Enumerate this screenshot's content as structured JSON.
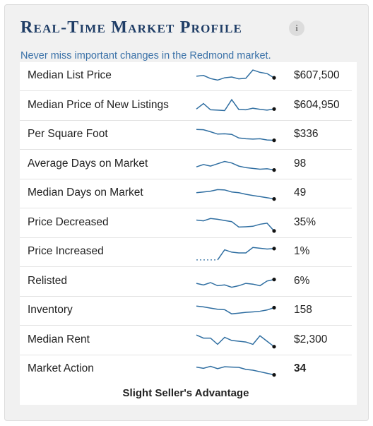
{
  "title": "Real-Time Market Profile",
  "subtitle": "Never miss important changes in the Redmond market.",
  "info_icon": "info-icon",
  "accent_color": "#1f3d66",
  "sparkline_color": "#2f6ea1",
  "rows": [
    {
      "label": "Median List Price",
      "value": "$607,500",
      "trend": [
        0.55,
        0.6,
        0.4,
        0.3,
        0.45,
        0.5,
        0.38,
        0.42,
        0.95,
        0.8,
        0.72,
        0.45
      ]
    },
    {
      "label": "Median Price of New Listings",
      "value": "$604,950",
      "trend": [
        0.35,
        0.7,
        0.3,
        0.28,
        0.25,
        0.95,
        0.32,
        0.3,
        0.4,
        0.33,
        0.28,
        0.35
      ]
    },
    {
      "label": "Per Square Foot",
      "value": "$336",
      "trend": [
        0.9,
        0.88,
        0.75,
        0.6,
        0.62,
        0.58,
        0.35,
        0.3,
        0.28,
        0.3,
        0.22,
        0.2
      ]
    },
    {
      "label": "Average Days on Market",
      "value": "98",
      "trend": [
        0.4,
        0.55,
        0.45,
        0.6,
        0.75,
        0.65,
        0.45,
        0.35,
        0.3,
        0.25,
        0.28,
        0.2
      ]
    },
    {
      "label": "Median Days on Market",
      "value": "49",
      "trend": [
        0.6,
        0.65,
        0.7,
        0.8,
        0.78,
        0.65,
        0.6,
        0.5,
        0.42,
        0.35,
        0.28,
        0.2
      ]
    },
    {
      "label": "Price Decreased",
      "value": "35%",
      "trend": [
        0.75,
        0.7,
        0.85,
        0.8,
        0.72,
        0.65,
        0.3,
        0.32,
        0.35,
        0.48,
        0.55,
        0.05
      ]
    },
    {
      "label": "Price Increased",
      "value": "1%",
      "trend": [
        0.05,
        0.05,
        0.05,
        0.05,
        0.7,
        0.55,
        0.5,
        0.5,
        0.85,
        0.8,
        0.75,
        0.78
      ],
      "dashed_start": true
    },
    {
      "label": "Relisted",
      "value": "6%",
      "trend": [
        0.45,
        0.35,
        0.5,
        0.3,
        0.35,
        0.2,
        0.3,
        0.45,
        0.4,
        0.3,
        0.6,
        0.7
      ]
    },
    {
      "label": "Inventory",
      "value": "158",
      "trend": [
        0.85,
        0.8,
        0.72,
        0.65,
        0.62,
        0.35,
        0.4,
        0.45,
        0.48,
        0.52,
        0.6,
        0.75
      ]
    },
    {
      "label": "Median Rent",
      "value": "$2,300",
      "trend": [
        0.9,
        0.7,
        0.7,
        0.3,
        0.75,
        0.55,
        0.5,
        0.45,
        0.3,
        0.85,
        0.5,
        0.15
      ]
    },
    {
      "label": "Market Action",
      "value": "34",
      "value_bold": true,
      "trend": [
        0.7,
        0.62,
        0.75,
        0.6,
        0.72,
        0.7,
        0.68,
        0.55,
        0.5,
        0.4,
        0.3,
        0.2
      ]
    }
  ],
  "verdict": "Slight Seller's Advantage"
}
